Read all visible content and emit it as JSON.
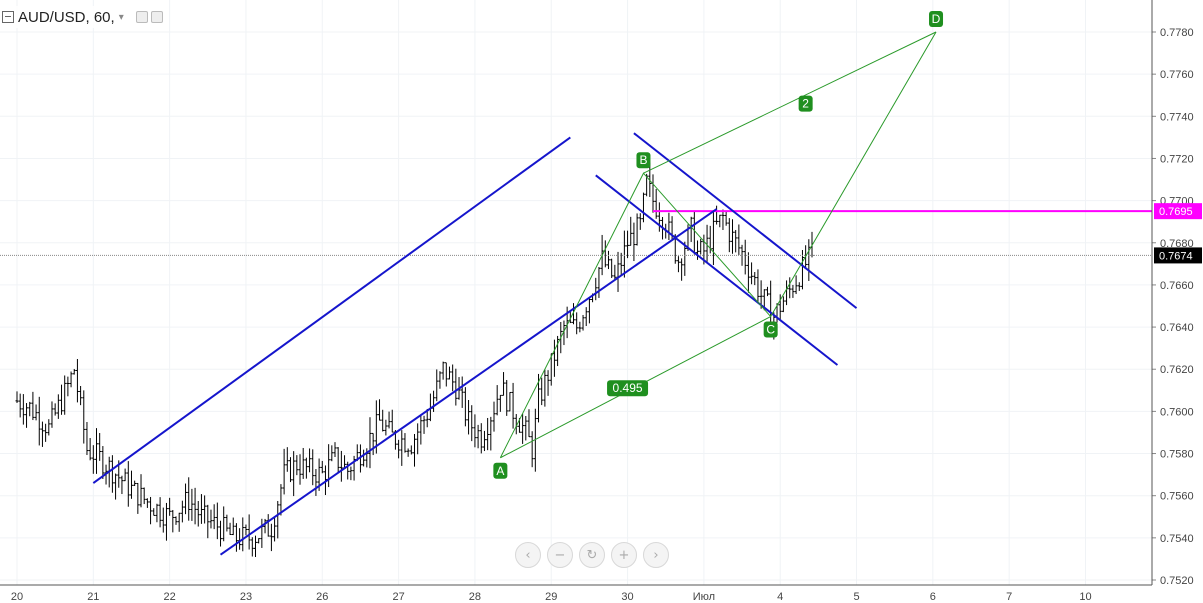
{
  "header": {
    "symbol": "AUD/USD, 60,",
    "caret": "▾",
    "icons": [
      "collapse-icon",
      "eye-icon",
      "settings-icon"
    ]
  },
  "nav_buttons": [
    {
      "name": "scroll-left-button",
      "glyph": "‹"
    },
    {
      "name": "zoom-out-button",
      "glyph": "−"
    },
    {
      "name": "reset-button",
      "glyph": "↻"
    },
    {
      "name": "zoom-in-button",
      "glyph": "+"
    },
    {
      "name": "scroll-right-button",
      "glyph": "›"
    }
  ],
  "chart_data": {
    "type": "ohlc",
    "price_axis": {
      "ylim": [
        0.7518,
        0.7788
      ],
      "ticks": [
        "0.7520",
        "0.7540",
        "0.7560",
        "0.7580",
        "0.7600",
        "0.7620",
        "0.7640",
        "0.7660",
        "0.7680",
        "0.7700",
        "0.7720",
        "0.7740",
        "0.7760",
        "0.7780"
      ]
    },
    "time_axis": {
      "ticks": [
        {
          "label": "20",
          "i": 0
        },
        {
          "label": "21",
          "i": 24
        },
        {
          "label": "22",
          "i": 48
        },
        {
          "label": "23",
          "i": 72
        },
        {
          "label": "26",
          "i": 96
        },
        {
          "label": "27",
          "i": 120
        },
        {
          "label": "28",
          "i": 144
        },
        {
          "label": "29",
          "i": 168
        },
        {
          "label": "30",
          "i": 192
        },
        {
          "label": "Июл",
          "i": 216
        },
        {
          "label": "4",
          "i": 240
        },
        {
          "label": "5",
          "i": 264
        },
        {
          "label": "6",
          "i": 288
        },
        {
          "label": "7",
          "i": 312
        },
        {
          "label": "10",
          "i": 336
        }
      ]
    },
    "close_anchors": [
      [
        0,
        0.7605
      ],
      [
        4,
        0.7602
      ],
      [
        10,
        0.7592
      ],
      [
        16,
        0.7612
      ],
      [
        18,
        0.762
      ],
      [
        22,
        0.7582
      ],
      [
        26,
        0.7578
      ],
      [
        30,
        0.7572
      ],
      [
        36,
        0.7563
      ],
      [
        42,
        0.7556
      ],
      [
        48,
        0.755
      ],
      [
        54,
        0.7558
      ],
      [
        58,
        0.755
      ],
      [
        64,
        0.7545
      ],
      [
        68,
        0.754
      ],
      [
        74,
        0.754
      ],
      [
        80,
        0.7545
      ],
      [
        84,
        0.757
      ],
      [
        88,
        0.7575
      ],
      [
        92,
        0.7572
      ],
      [
        96,
        0.757
      ],
      [
        100,
        0.7578
      ],
      [
        104,
        0.7572
      ],
      [
        110,
        0.7585
      ],
      [
        114,
        0.7595
      ],
      [
        118,
        0.7588
      ],
      [
        124,
        0.7585
      ],
      [
        130,
        0.7602
      ],
      [
        134,
        0.762
      ],
      [
        138,
        0.7612
      ],
      [
        142,
        0.7595
      ],
      [
        146,
        0.7588
      ],
      [
        150,
        0.7602
      ],
      [
        152,
        0.7612
      ],
      [
        156,
        0.76
      ],
      [
        160,
        0.759
      ],
      [
        162,
        0.7582
      ],
      [
        164,
        0.7605
      ],
      [
        168,
        0.7622
      ],
      [
        172,
        0.764
      ],
      [
        176,
        0.764
      ],
      [
        180,
        0.7655
      ],
      [
        184,
        0.7672
      ],
      [
        188,
        0.7662
      ],
      [
        192,
        0.768
      ],
      [
        196,
        0.7688
      ],
      [
        198,
        0.7708
      ],
      [
        200,
        0.77
      ],
      [
        204,
        0.769
      ],
      [
        206,
        0.768
      ],
      [
        208,
        0.7672
      ],
      [
        212,
        0.7686
      ],
      [
        214,
        0.7675
      ],
      [
        216,
        0.7676
      ],
      [
        220,
        0.7688
      ],
      [
        222,
        0.7692
      ],
      [
        224,
        0.7685
      ],
      [
        228,
        0.7675
      ],
      [
        232,
        0.7662
      ],
      [
        234,
        0.7655
      ],
      [
        236,
        0.765
      ],
      [
        238,
        0.7645
      ],
      [
        240,
        0.765
      ],
      [
        242,
        0.7655
      ],
      [
        244,
        0.766
      ],
      [
        246,
        0.7665
      ],
      [
        248,
        0.767
      ],
      [
        250,
        0.7674
      ]
    ],
    "last_price": {
      "label": "0.7674",
      "value": 0.7674,
      "color": "#000000"
    },
    "horizontal_level": {
      "label": "0.7695",
      "value": 0.7695,
      "from_i": 200,
      "color": "#ff00ff"
    },
    "channel_lines": [
      {
        "p1": [
          24,
          0.7566
        ],
        "p2": [
          174,
          0.773
        ]
      },
      {
        "p1": [
          64,
          0.7532
        ],
        "p2": [
          220,
          0.7696
        ]
      },
      {
        "p1": [
          194,
          0.7732
        ],
        "p2": [
          264,
          0.7649
        ]
      },
      {
        "p1": [
          182,
          0.7712
        ],
        "p2": [
          258,
          0.7622
        ]
      }
    ],
    "channel_color": "#1515cc",
    "pattern": {
      "color": "#2a9a2a",
      "points": [
        {
          "label": "A",
          "i": 152,
          "v": 0.7578,
          "badge": "below"
        },
        {
          "label": "B",
          "i": 197,
          "v": 0.7713,
          "badge": "above"
        },
        {
          "label": "C",
          "i": 237,
          "v": 0.7645,
          "badge": "below"
        },
        {
          "label": "D",
          "i": 289,
          "v": 0.778,
          "badge": "above"
        }
      ],
      "labels": [
        {
          "text": "2",
          "i": 248,
          "v": 0.7746
        },
        {
          "text": "0.495",
          "i": 192,
          "v": 0.7611
        }
      ]
    }
  }
}
